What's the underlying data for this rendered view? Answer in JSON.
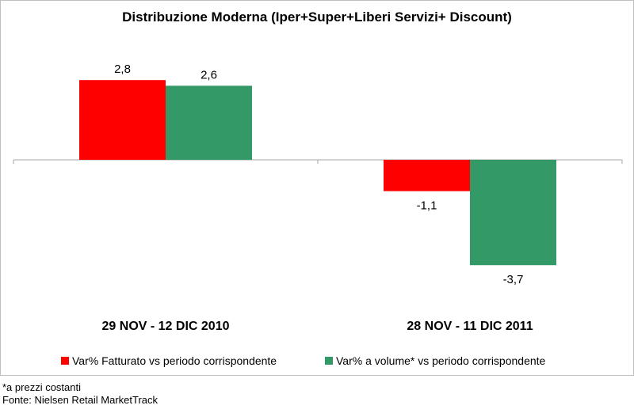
{
  "chart_data": {
    "type": "bar",
    "title": "Distribuzione Moderna (Iper+Super+Liberi Servizi+ Discount)",
    "categories": [
      "29 NOV - 12 DIC 2010",
      "28 NOV - 11 DIC 2011"
    ],
    "series": [
      {
        "name": "Var% Fatturato vs periodo corrispondente",
        "values": [
          2.8,
          -1.1
        ],
        "labels": [
          "2,8",
          "-1,1"
        ],
        "color": "#ff0000"
      },
      {
        "name": "Var% a volume* vs periodo corrispondente",
        "values": [
          2.6,
          -3.7
        ],
        "labels": [
          "2,6",
          "-3,7"
        ],
        "color": "#339966"
      }
    ],
    "ylim": [
      -4.4,
      3.4
    ],
    "grid": false,
    "legend": "bottom"
  },
  "footnotes": {
    "note": "*a prezzi costanti",
    "source": "Fonte: Nielsen Retail MarketTrack"
  }
}
